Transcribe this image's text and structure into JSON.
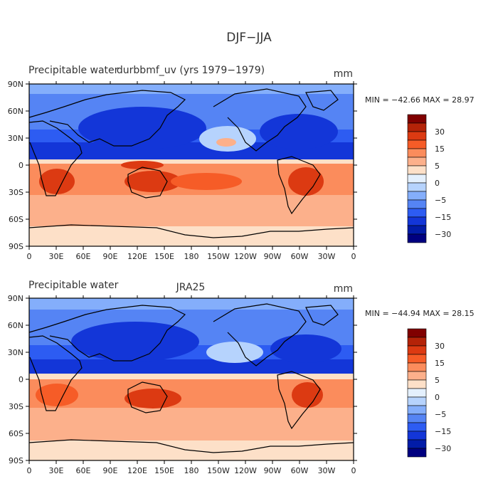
{
  "chart_data": [
    {
      "type": "heatmap",
      "title": "DJF−JJA",
      "left_label": "Precipitable water",
      "center_label": "durbbmf_uv (yrs 1979−1979)",
      "units": "mm",
      "min": -42.66,
      "max": 28.97,
      "stats_text": "MIN = −42.66 MAX =  28.97",
      "x_ticks": [
        "0",
        "30E",
        "60E",
        "90E",
        "120E",
        "150E",
        "180",
        "150W",
        "120W",
        "90W",
        "60W",
        "30W",
        "0"
      ],
      "y_ticks": [
        "90N",
        "60N",
        "30N",
        "0",
        "30S",
        "60S",
        "90S"
      ],
      "legend_levels": [
        "30",
        "15",
        "5",
        "0",
        "−5",
        "−15",
        "−30"
      ],
      "zonal_profile": [
        {
          "lat": 80,
          "value": -14
        },
        {
          "lat": 55,
          "value": -22
        },
        {
          "lat": 30,
          "value": -18
        },
        {
          "lat": 10,
          "value": -30
        },
        {
          "lat": 2,
          "value": 2
        },
        {
          "lat": -20,
          "value": 18
        },
        {
          "lat": -40,
          "value": 9
        },
        {
          "lat": -70,
          "value": 2
        }
      ]
    },
    {
      "type": "heatmap",
      "left_label": "Precipitable water",
      "center_label": "JRA25",
      "units": "mm",
      "min": -44.94,
      "max": 28.15,
      "stats_text": "MIN = −44.94 MAX =  28.15",
      "x_ticks": [
        "0",
        "30E",
        "60E",
        "90E",
        "120E",
        "150E",
        "180",
        "150W",
        "120W",
        "90W",
        "60W",
        "30W",
        "0"
      ],
      "y_ticks": [
        "90N",
        "60N",
        "30N",
        "0",
        "30S",
        "60S",
        "90S"
      ],
      "legend_levels": [
        "30",
        "15",
        "5",
        "0",
        "−5",
        "−15",
        "−30"
      ],
      "zonal_profile": [
        {
          "lat": 80,
          "value": -12
        },
        {
          "lat": 55,
          "value": -20
        },
        {
          "lat": 30,
          "value": -20
        },
        {
          "lat": 10,
          "value": -28
        },
        {
          "lat": 2,
          "value": 3
        },
        {
          "lat": -20,
          "value": 15
        },
        {
          "lat": -40,
          "value": 8
        },
        {
          "lat": -70,
          "value": 2
        }
      ]
    }
  ],
  "colors": [
    "#800000",
    "#b42308",
    "#dc3a12",
    "#f65c27",
    "#fb8c5c",
    "#fcb08b",
    "#fde0c8",
    "#e4f0fd",
    "#b6d3fd",
    "#84aefb",
    "#5584f4",
    "#2d5cf2",
    "#1336d8",
    "#021ca8",
    "#000080"
  ]
}
